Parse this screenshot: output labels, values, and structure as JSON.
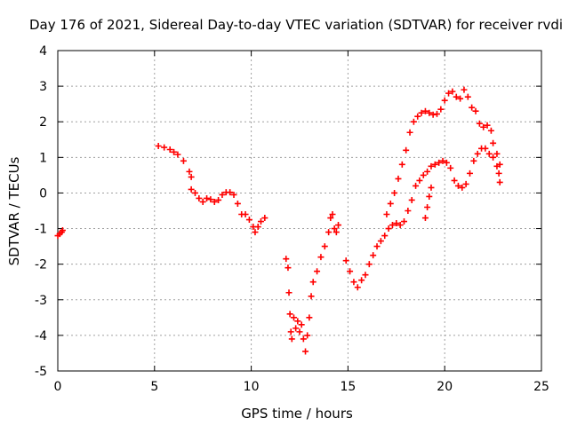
{
  "chart_data": {
    "type": "scatter",
    "title": "Day 176 of 2021, Sidereal Day-to-day VTEC variation (SDTVAR) for receiver rvdi",
    "xlabel": "GPS time / hours",
    "ylabel": "SDTVAR / TECUs",
    "xlim": [
      0,
      25
    ],
    "ylim": [
      -5,
      4
    ],
    "xticks": [
      "0",
      "5",
      "10",
      "15",
      "20",
      "25"
    ],
    "yticks": [
      "-5",
      "-4",
      "-3",
      "-2",
      "-1",
      "0",
      "1",
      "2",
      "3",
      "4"
    ],
    "grid": true,
    "marker": "+",
    "color": "#ff0000",
    "series": [
      {
        "values": [
          [
            0.0,
            -1.2
          ],
          [
            0.1,
            -1.15
          ],
          [
            0.2,
            -1.1
          ],
          [
            0.25,
            -1.05
          ],
          [
            5.2,
            1.32
          ],
          [
            5.5,
            1.28
          ],
          [
            5.8,
            1.22
          ],
          [
            6.0,
            1.15
          ],
          [
            6.2,
            1.08
          ],
          [
            6.5,
            0.9
          ],
          [
            6.8,
            0.6
          ],
          [
            6.9,
            0.45
          ],
          [
            6.9,
            0.1
          ],
          [
            7.1,
            0.0
          ],
          [
            7.3,
            -0.15
          ],
          [
            7.5,
            -0.25
          ],
          [
            7.7,
            -0.15
          ],
          [
            7.9,
            -0.18
          ],
          [
            8.1,
            -0.25
          ],
          [
            8.3,
            -0.2
          ],
          [
            8.5,
            -0.05
          ],
          [
            8.7,
            0.02
          ],
          [
            8.9,
            0.02
          ],
          [
            9.1,
            -0.05
          ],
          [
            9.3,
            -0.3
          ],
          [
            9.5,
            -0.6
          ],
          [
            9.7,
            -0.6
          ],
          [
            9.9,
            -0.75
          ],
          [
            10.1,
            -0.95
          ],
          [
            10.2,
            -1.1
          ],
          [
            10.35,
            -0.95
          ],
          [
            10.5,
            -0.8
          ],
          [
            10.7,
            -0.7
          ],
          [
            11.8,
            -1.85
          ],
          [
            11.9,
            -2.1
          ],
          [
            11.95,
            -2.8
          ],
          [
            12.0,
            -3.4
          ],
          [
            12.05,
            -3.9
          ],
          [
            12.1,
            -4.1
          ],
          [
            12.2,
            -3.5
          ],
          [
            12.3,
            -3.8
          ],
          [
            12.4,
            -3.6
          ],
          [
            12.5,
            -3.9
          ],
          [
            12.6,
            -3.7
          ],
          [
            12.7,
            -4.1
          ],
          [
            12.8,
            -4.45
          ],
          [
            12.9,
            -4.0
          ],
          [
            13.0,
            -3.5
          ],
          [
            13.1,
            -2.9
          ],
          [
            13.2,
            -2.5
          ],
          [
            13.4,
            -2.2
          ],
          [
            13.6,
            -1.8
          ],
          [
            13.8,
            -1.5
          ],
          [
            14.0,
            -1.1
          ],
          [
            14.1,
            -0.7
          ],
          [
            14.2,
            -0.6
          ],
          [
            14.3,
            -1.0
          ],
          [
            14.4,
            -1.1
          ],
          [
            14.5,
            -0.9
          ],
          [
            14.9,
            -1.9
          ],
          [
            15.1,
            -2.2
          ],
          [
            15.3,
            -2.5
          ],
          [
            15.5,
            -2.65
          ],
          [
            15.7,
            -2.45
          ],
          [
            15.9,
            -2.3
          ],
          [
            16.1,
            -2.0
          ],
          [
            16.3,
            -1.75
          ],
          [
            16.5,
            -1.5
          ],
          [
            16.7,
            -1.35
          ],
          [
            16.9,
            -1.2
          ],
          [
            17.1,
            -1.0
          ],
          [
            17.3,
            -0.9
          ],
          [
            17.5,
            -0.85
          ],
          [
            17.7,
            -0.9
          ],
          [
            17.9,
            -0.8
          ],
          [
            18.1,
            -0.5
          ],
          [
            18.3,
            -0.2
          ],
          [
            18.5,
            0.2
          ],
          [
            18.7,
            0.35
          ],
          [
            18.9,
            0.5
          ],
          [
            19.1,
            0.6
          ],
          [
            19.3,
            0.75
          ],
          [
            19.5,
            0.8
          ],
          [
            19.7,
            0.85
          ],
          [
            19.9,
            0.9
          ],
          [
            20.1,
            0.85
          ],
          [
            20.3,
            0.7
          ],
          [
            20.5,
            0.35
          ],
          [
            20.7,
            0.2
          ],
          [
            20.9,
            0.15
          ],
          [
            21.1,
            0.25
          ],
          [
            21.3,
            0.55
          ],
          [
            21.5,
            0.9
          ],
          [
            21.7,
            1.1
          ],
          [
            21.9,
            1.25
          ],
          [
            22.1,
            1.25
          ],
          [
            22.3,
            1.1
          ],
          [
            22.5,
            1.0
          ],
          [
            22.7,
            0.75
          ],
          [
            22.8,
            0.55
          ],
          [
            22.85,
            0.3
          ],
          [
            19.0,
            -0.7
          ],
          [
            19.1,
            -0.4
          ],
          [
            19.2,
            -0.1
          ],
          [
            19.3,
            0.15
          ],
          [
            17.0,
            -0.6
          ],
          [
            17.2,
            -0.3
          ],
          [
            17.4,
            0.0
          ],
          [
            17.6,
            0.4
          ],
          [
            17.8,
            0.8
          ],
          [
            18.0,
            1.2
          ],
          [
            18.2,
            1.7
          ],
          [
            18.4,
            2.0
          ],
          [
            18.6,
            2.15
          ],
          [
            18.8,
            2.25
          ],
          [
            19.0,
            2.3
          ],
          [
            19.2,
            2.25
          ],
          [
            19.4,
            2.2
          ],
          [
            19.6,
            2.22
          ],
          [
            19.8,
            2.35
          ],
          [
            20.0,
            2.6
          ],
          [
            20.2,
            2.8
          ],
          [
            20.4,
            2.85
          ],
          [
            20.6,
            2.7
          ],
          [
            20.8,
            2.65
          ],
          [
            21.0,
            2.9
          ],
          [
            21.2,
            2.7
          ],
          [
            21.4,
            2.4
          ],
          [
            21.6,
            2.3
          ],
          [
            21.8,
            1.95
          ],
          [
            22.0,
            1.85
          ],
          [
            22.2,
            1.9
          ],
          [
            22.4,
            1.75
          ],
          [
            22.5,
            1.4
          ],
          [
            22.7,
            1.1
          ],
          [
            22.85,
            0.8
          ]
        ]
      }
    ]
  }
}
